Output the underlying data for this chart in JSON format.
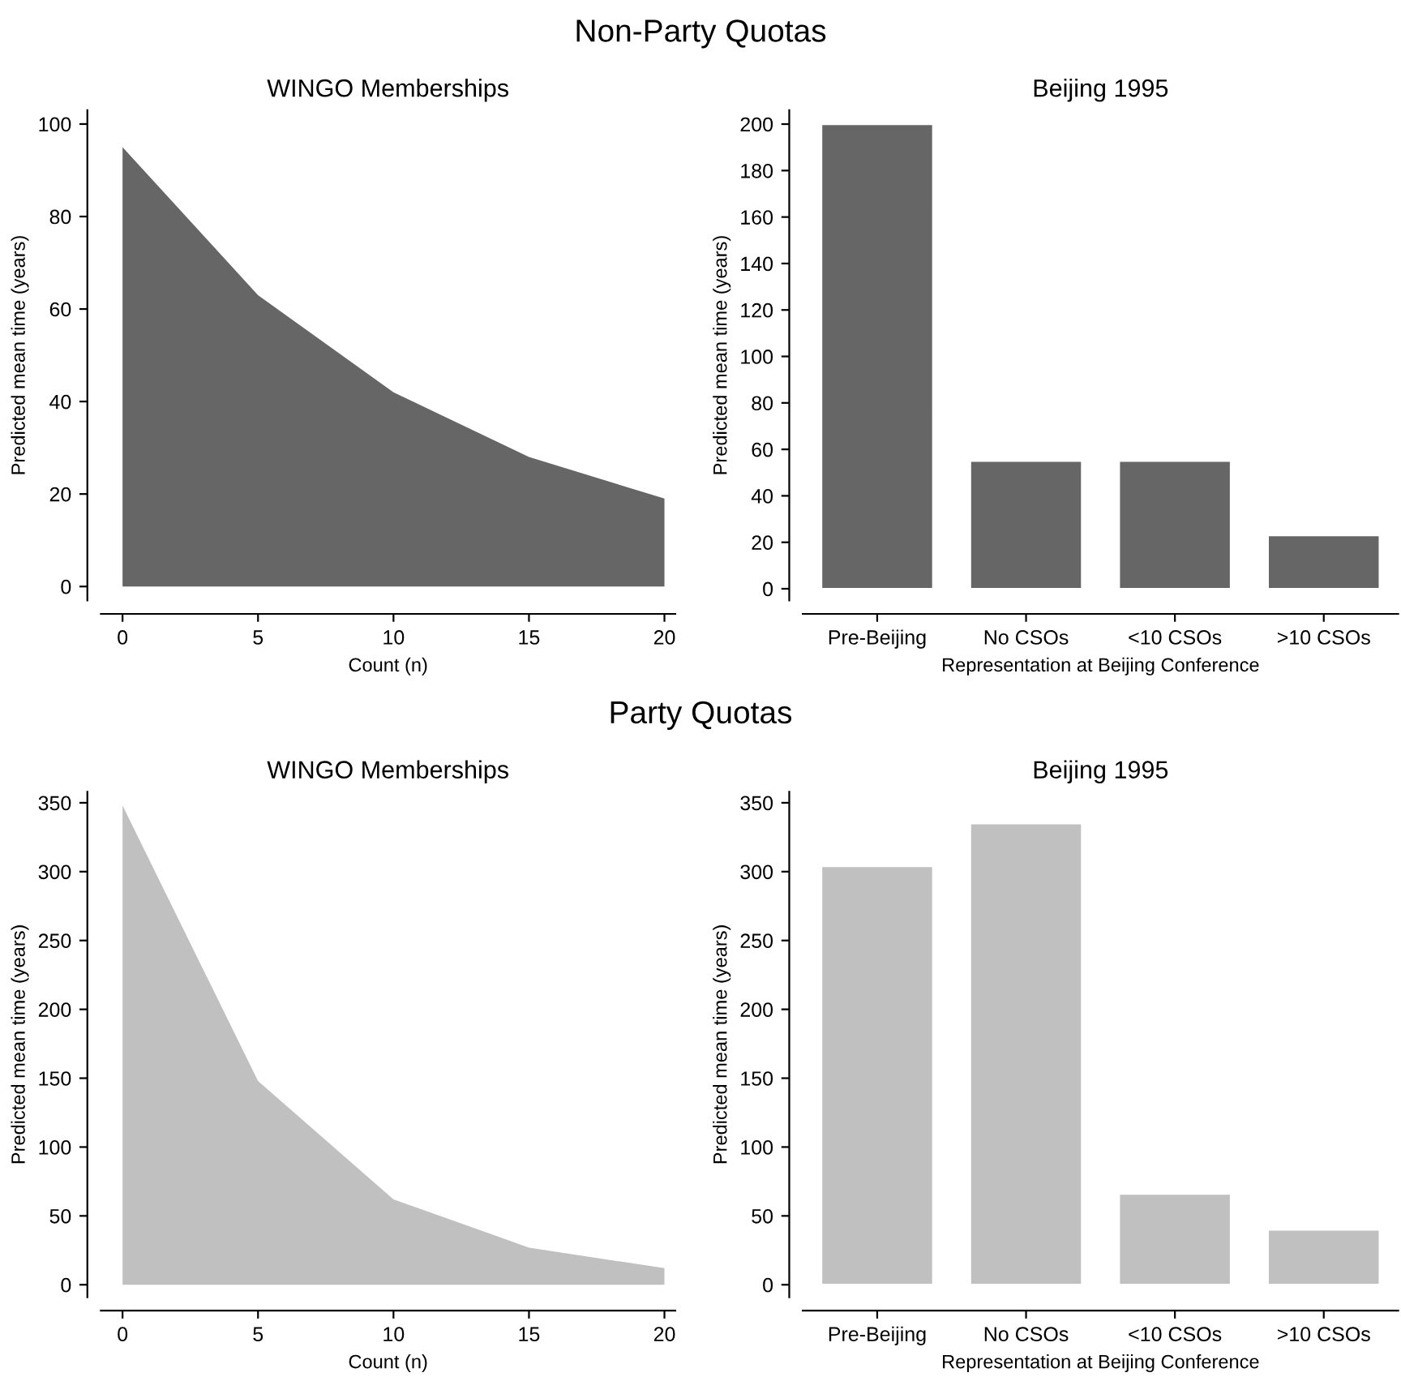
{
  "chart_data": [
    {
      "type": "area",
      "title": "WINGO Memberships",
      "xlabel": "Count (n)",
      "ylabel": "Predicted mean time (years)",
      "annotations": [
        "Non-Party Quotas"
      ],
      "x": [
        0,
        5,
        10,
        15,
        20
      ],
      "values": [
        95,
        63,
        42,
        28,
        19
      ],
      "color": "#666666",
      "xlim": [
        -0.8,
        20.4
      ],
      "xticks": [
        0,
        5,
        10,
        15,
        20
      ],
      "ylim": [
        -3,
        103
      ],
      "yticks": [
        0,
        20,
        40,
        60,
        80,
        100
      ],
      "grid": false
    },
    {
      "type": "bar",
      "title": "Beijing 1995",
      "xlabel": "Representation at Beijing Conference",
      "ylabel": "Predicted mean time (years)",
      "categories": [
        "Pre-Beijing",
        "No CSOs",
        "<10 CSOs",
        ">10 CSOs"
      ],
      "values": [
        200,
        55,
        55,
        23
      ],
      "color": "#666666",
      "ylim": [
        -5,
        206
      ],
      "yticks": [
        0,
        20,
        40,
        60,
        80,
        100,
        120,
        140,
        160,
        180,
        200
      ],
      "grid": false
    },
    {
      "type": "area",
      "title": "WINGO Memberships",
      "xlabel": "Count (n)",
      "ylabel": "Predicted mean time (years)",
      "annotations": [
        "Party Quotas"
      ],
      "x": [
        0,
        5,
        10,
        15,
        20
      ],
      "values": [
        348,
        148,
        62,
        27,
        12
      ],
      "color": "#c0c0c0",
      "xlim": [
        -0.8,
        20.4
      ],
      "xticks": [
        0,
        5,
        10,
        15,
        20
      ],
      "ylim": [
        -9,
        358
      ],
      "yticks": [
        0,
        50,
        100,
        150,
        200,
        250,
        300,
        350
      ],
      "grid": false
    },
    {
      "type": "bar",
      "title": "Beijing 1995",
      "xlabel": "Representation at Beijing Conference",
      "ylabel": "Predicted mean time (years)",
      "categories": [
        "Pre-Beijing",
        "No CSOs",
        "<10 CSOs",
        ">10 CSOs"
      ],
      "values": [
        304,
        335,
        66,
        40
      ],
      "color": "#c0c0c0",
      "ylim": [
        -9,
        358
      ],
      "yticks": [
        0,
        50,
        100,
        150,
        200,
        250,
        300,
        350
      ],
      "grid": false
    }
  ]
}
